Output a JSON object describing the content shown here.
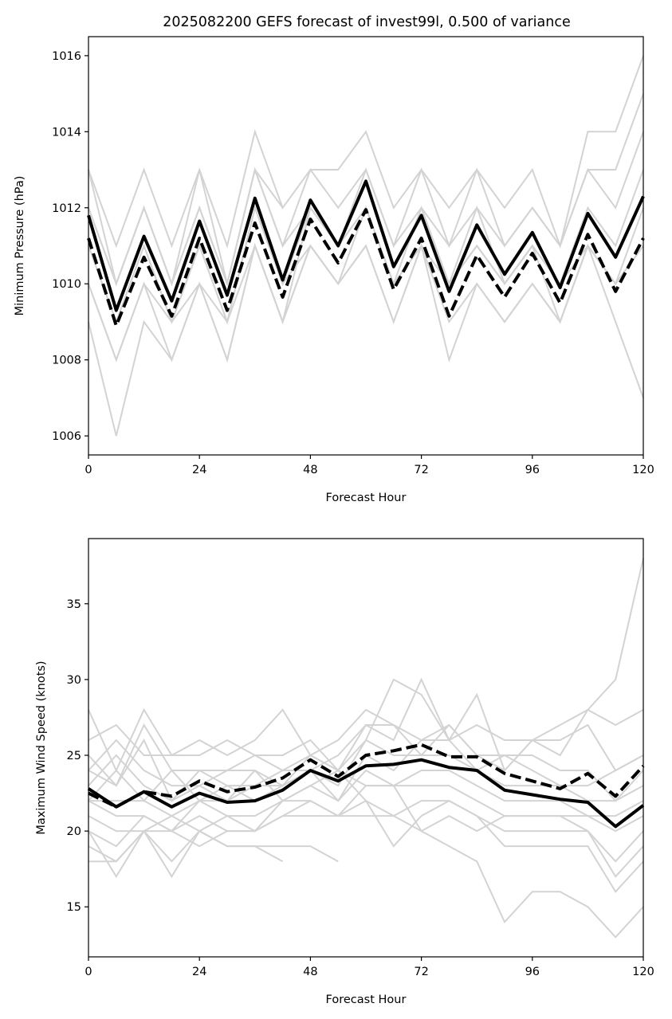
{
  "chart_data": [
    {
      "type": "line",
      "title": "2025082200 GEFS forecast of invest99l, 0.500 of variance",
      "xlabel": "Forecast Hour",
      "ylabel": "Minimum Pressure (hPa)",
      "xlim": [
        0,
        120
      ],
      "ylim": [
        1005.5,
        1016.5
      ],
      "xticks": [
        0,
        24,
        48,
        72,
        96,
        120
      ],
      "yticks": [
        1006,
        1008,
        1010,
        1012,
        1014,
        1016
      ],
      "grid": false,
      "x": [
        0,
        6,
        12,
        18,
        24,
        30,
        36,
        42,
        48,
        54,
        60,
        66,
        72,
        78,
        84,
        90,
        96,
        102,
        108,
        114,
        120
      ],
      "series": [
        {
          "name": "mean",
          "style": "solid",
          "color": "#000000",
          "values": [
            1011.8,
            1009.3,
            1011.25,
            1009.55,
            1011.65,
            1009.7,
            1012.25,
            1010.1,
            1012.2,
            1011.0,
            1012.7,
            1010.45,
            1011.8,
            1009.8,
            1011.55,
            1010.25,
            1011.35,
            1009.9,
            1011.85,
            1010.7,
            1012.3
          ]
        },
        {
          "name": "selected-mean",
          "style": "dashed",
          "color": "#000000",
          "values": [
            1011.2,
            1008.9,
            1010.7,
            1009.15,
            1011.2,
            1009.3,
            1011.6,
            1009.65,
            1011.7,
            1010.55,
            1011.95,
            1009.85,
            1011.2,
            1009.15,
            1010.75,
            1009.65,
            1010.8,
            1009.5,
            1011.3,
            1009.8,
            1011.2
          ]
        }
      ],
      "members": [
        {
          "color": "#d3d3d3",
          "values": [
            1013,
            1011,
            1013,
            1011,
            1013,
            1011,
            1014,
            1012,
            1013,
            1013,
            1014,
            1012,
            1013,
            1012,
            1013,
            1012,
            1013,
            1011,
            1014,
            1014,
            1016
          ]
        },
        {
          "color": "#d3d3d3",
          "values": [
            1012,
            1010,
            1012,
            1010,
            1012,
            1010,
            1013,
            1011,
            1013,
            1012,
            1013,
            1011,
            1013,
            1011,
            1013,
            1011,
            1012,
            1011,
            1013,
            1013,
            1015
          ]
        },
        {
          "color": "#d3d3d3",
          "values": [
            1012,
            1010,
            1012,
            1010,
            1012,
            1010,
            1013,
            1011,
            1012,
            1011,
            1013,
            1011,
            1012,
            1011,
            1012,
            1011,
            1012,
            1011,
            1013,
            1012,
            1014
          ]
        },
        {
          "color": "#d3d3d3",
          "values": [
            1013,
            1010,
            1012,
            1010,
            1013,
            1010,
            1013,
            1012
          ]
        },
        {
          "color": "#d3d3d3",
          "values": [
            1011,
            1009,
            1011,
            1009,
            1011,
            1009,
            1012,
            1010,
            1012,
            1011,
            1012,
            1010,
            1012,
            1010,
            1012,
            1010,
            1011,
            1010,
            1012,
            1011,
            1013
          ]
        },
        {
          "color": "#d3d3d3",
          "values": [
            1011,
            1009,
            1011,
            1009,
            1011,
            1009,
            1012,
            1010,
            1011,
            1010,
            1012,
            1010,
            1011,
            1010,
            1011,
            1010,
            1011,
            1009,
            1011,
            1010,
            1012
          ]
        },
        {
          "color": "#d3d3d3",
          "values": [
            1010,
            1008,
            1010,
            1008,
            1010,
            1009,
            1011,
            1009,
            1011,
            1010,
            1011,
            1009,
            1011,
            1008,
            1010,
            1009,
            1010,
            1009,
            1011,
            1009,
            1007
          ]
        },
        {
          "color": "#d3d3d3",
          "values": [
            1010,
            1008,
            1010,
            1009,
            1010,
            1008,
            1011,
            1009,
            1011,
            1010,
            1011,
            1009,
            1011,
            1009,
            1010,
            1009,
            1010,
            1009,
            1011,
            1010,
            1011
          ]
        },
        {
          "color": "#d3d3d3",
          "values": [
            1009,
            1006,
            1009,
            1008,
            1010,
            1008,
            1011,
            1009,
            1012,
            1011,
            1012,
            1010,
            1011,
            1010,
            1011,
            1010,
            1011,
            1010,
            1011,
            1010,
            1011
          ]
        }
      ]
    },
    {
      "type": "line",
      "title": "",
      "xlabel": "Forecast Hour",
      "ylabel": "Maximum Wind Speed (knots)",
      "xlim": [
        0,
        120
      ],
      "ylim": [
        11.7,
        39.3
      ],
      "xticks": [
        0,
        24,
        48,
        72,
        96,
        120
      ],
      "yticks": [
        15,
        20,
        25,
        30,
        35
      ],
      "grid": false,
      "x": [
        0,
        6,
        12,
        18,
        24,
        30,
        36,
        42,
        48,
        54,
        60,
        66,
        72,
        78,
        84,
        90,
        96,
        102,
        108,
        114,
        120
      ],
      "series": [
        {
          "name": "mean",
          "style": "solid",
          "color": "#000000",
          "values": [
            22.8,
            21.6,
            22.6,
            21.6,
            22.5,
            21.9,
            22.0,
            22.7,
            24.0,
            23.3,
            24.3,
            24.4,
            24.7,
            24.2,
            24.0,
            22.7,
            22.4,
            22.1,
            21.9,
            20.3,
            21.7
          ]
        },
        {
          "name": "selected-mean",
          "style": "dashed",
          "color": "#000000",
          "values": [
            22.5,
            21.6,
            22.6,
            22.3,
            23.3,
            22.6,
            22.9,
            23.5,
            24.7,
            23.6,
            25.0,
            25.3,
            25.7,
            24.9,
            24.9,
            23.8,
            23.3,
            22.8,
            23.8,
            22.3,
            24.3
          ]
        }
      ],
      "members": [
        {
          "color": "#d3d3d3",
          "values": [
            28,
            24,
            28,
            25,
            26,
            25,
            26,
            28,
            25,
            26,
            28,
            27,
            25,
            27,
            25,
            24,
            26,
            27,
            28,
            30,
            38
          ]
        },
        {
          "color": "#d3d3d3",
          "values": [
            26,
            27,
            25,
            25,
            25,
            26,
            25,
            25,
            26,
            24,
            26,
            30,
            29,
            26,
            29,
            24,
            26,
            25,
            28,
            27,
            28
          ]
        },
        {
          "color": "#d3d3d3",
          "values": [
            25,
            23,
            27,
            24,
            24,
            24,
            25,
            24,
            25,
            24,
            27,
            26,
            30,
            26,
            27,
            26,
            26,
            26,
            27,
            24,
            25
          ]
        },
        {
          "color": "#d3d3d3",
          "values": [
            24,
            26,
            24,
            23,
            23,
            24,
            24,
            23,
            24,
            25,
            27,
            27,
            26,
            27,
            25,
            25,
            25,
            24,
            24,
            22,
            24
          ]
        },
        {
          "color": "#d3d3d3",
          "values": [
            23,
            25,
            23,
            22,
            24,
            23,
            23,
            24,
            24,
            23,
            26,
            25,
            25,
            25,
            24,
            25,
            24,
            23,
            23,
            24,
            25
          ]
        },
        {
          "color": "#d3d3d3",
          "values": [
            22,
            22,
            22,
            21,
            22,
            22,
            23,
            23,
            24,
            22,
            25,
            24,
            26,
            26,
            24,
            23,
            23,
            23,
            22,
            22,
            23
          ]
        },
        {
          "color": "#d3d3d3",
          "values": [
            22,
            21,
            21,
            20,
            22,
            21,
            21,
            22,
            23,
            22,
            24,
            23,
            24,
            24,
            23,
            22,
            22,
            22,
            21,
            21,
            22
          ]
        },
        {
          "color": "#d3d3d3",
          "values": [
            21,
            20,
            20,
            21,
            20,
            21,
            20,
            22,
            22,
            21,
            23,
            23,
            23,
            23,
            22,
            21,
            21,
            21,
            20,
            18,
            20
          ]
        },
        {
          "color": "#d3d3d3",
          "values": [
            20,
            19,
            21,
            20,
            21,
            20,
            20,
            21,
            22,
            21,
            22,
            21,
            22,
            22,
            21,
            20,
            20,
            20,
            20,
            17,
            19
          ]
        },
        {
          "color": "#d3d3d3",
          "values": [
            19,
            18,
            20,
            17,
            20,
            19,
            19,
            18
          ]
        },
        {
          "color": "#d3d3d3",
          "values": [
            18,
            18,
            20,
            18,
            20,
            19,
            19,
            19,
            19,
            18
          ]
        },
        {
          "color": "#d3d3d3",
          "values": [
            20,
            17,
            20,
            20,
            19,
            20,
            20,
            21,
            21,
            21,
            21,
            21,
            20,
            19,
            18,
            14,
            16,
            16,
            15,
            13,
            15
          ]
        },
        {
          "color": "#d3d3d3",
          "values": [
            24,
            23,
            26,
            22,
            23,
            22,
            24,
            22,
            23,
            24,
            22,
            19,
            21,
            22,
            21,
            19,
            19,
            19,
            19,
            16,
            18
          ]
        },
        {
          "color": "#d3d3d3",
          "values": [
            22,
            24,
            22,
            24,
            22,
            23,
            22,
            23,
            25,
            24,
            23,
            23,
            20,
            21,
            20,
            21,
            21,
            21,
            21,
            20,
            21
          ]
        }
      ]
    }
  ]
}
